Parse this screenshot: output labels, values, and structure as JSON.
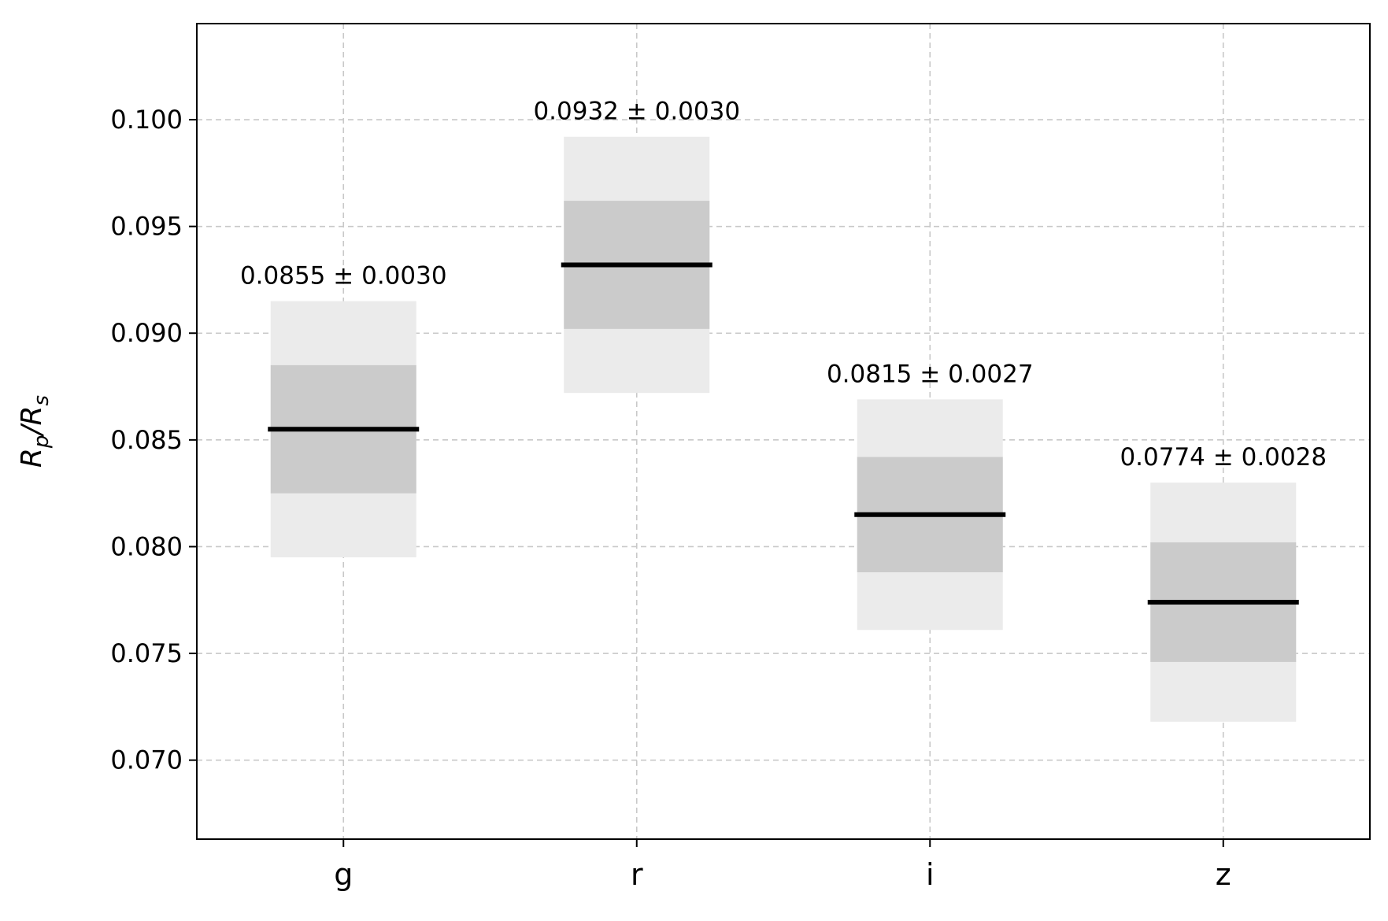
{
  "chart_data": {
    "type": "bar",
    "title": "",
    "xlabel": "",
    "ylabel_main": "R",
    "ylabel_sub1": "p",
    "ylabel_slash": "/",
    "ylabel_sub2": "s",
    "ylim": [
      0.0663,
      0.1045
    ],
    "yticks": [
      0.07,
      0.075,
      0.08,
      0.085,
      0.09,
      0.095,
      0.1
    ],
    "ytick_labels": [
      "0.070",
      "0.075",
      "0.080",
      "0.085",
      "0.090",
      "0.095",
      "0.100"
    ],
    "grid": true,
    "categories": [
      "g",
      "r",
      "i",
      "z"
    ],
    "values": [
      0.0855,
      0.0932,
      0.0815,
      0.0774
    ],
    "errors": [
      0.003,
      0.003,
      0.0027,
      0.0028
    ],
    "annotations": [
      "0.0855 ± 0.0030",
      "0.0932 ± 0.0030",
      "0.0815 ± 0.0027",
      "0.0774 ± 0.0028"
    ],
    "band_colors": {
      "one_sigma": "#cbcbcb",
      "two_sigma": "#ebebeb",
      "median": "#000000",
      "grid": "#c8c8c8"
    }
  }
}
